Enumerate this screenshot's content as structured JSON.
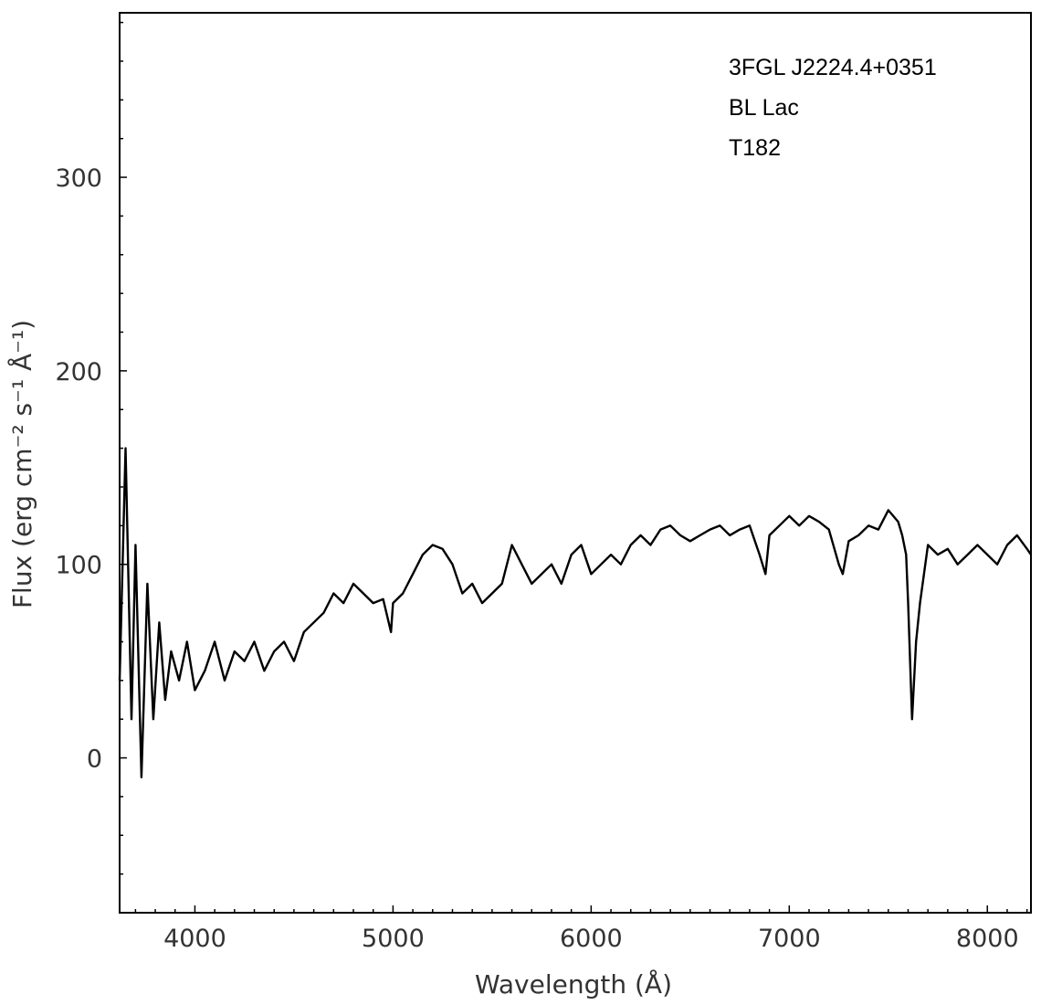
{
  "chart_data": {
    "type": "line",
    "title": "",
    "xlabel": "Wavelength (Å)",
    "ylabel": "Flux (erg cm⁻² s⁻¹ Å⁻¹)",
    "xlim": [
      3620,
      8220
    ],
    "ylim": [
      -80,
      385
    ],
    "x_ticks": [
      4000,
      5000,
      6000,
      7000,
      8000
    ],
    "y_ticks": [
      0,
      100,
      200,
      300
    ],
    "grid": false,
    "legend": "none",
    "line_color": "#000000",
    "annotations": [
      "3FGL J2224.4+0351",
      "BL Lac",
      "T182"
    ],
    "series": [
      {
        "x": [
          3620,
          3650,
          3680,
          3700,
          3730,
          3760,
          3790,
          3820,
          3850,
          3880,
          3920,
          3960,
          4000,
          4050,
          4100,
          4150,
          4200,
          4250,
          4300,
          4350,
          4400,
          4450,
          4500,
          4550,
          4600,
          4650,
          4700,
          4750,
          4800,
          4850,
          4900,
          4950,
          4990,
          5000,
          5050,
          5100,
          5150,
          5200,
          5250,
          5300,
          5350,
          5400,
          5450,
          5500,
          5550,
          5600,
          5650,
          5700,
          5750,
          5800,
          5850,
          5900,
          5950,
          6000,
          6050,
          6100,
          6150,
          6200,
          6250,
          6300,
          6350,
          6400,
          6450,
          6500,
          6550,
          6600,
          6650,
          6700,
          6750,
          6800,
          6850,
          6880,
          6900,
          6950,
          7000,
          7050,
          7100,
          7150,
          7200,
          7250,
          7270,
          7300,
          7350,
          7400,
          7450,
          7500,
          7550,
          7570,
          7590,
          7600,
          7620,
          7640,
          7660,
          7700,
          7750,
          7800,
          7850,
          7900,
          7950,
          8000,
          8050,
          8100,
          8150,
          8200,
          8220
        ],
        "y": [
          40,
          160,
          20,
          110,
          -10,
          90,
          20,
          70,
          30,
          55,
          40,
          60,
          35,
          45,
          60,
          40,
          55,
          50,
          60,
          45,
          55,
          60,
          50,
          65,
          70,
          75,
          85,
          80,
          90,
          85,
          80,
          82,
          65,
          80,
          85,
          95,
          105,
          110,
          108,
          100,
          85,
          90,
          80,
          85,
          90,
          110,
          100,
          90,
          95,
          100,
          90,
          105,
          110,
          95,
          100,
          105,
          100,
          110,
          115,
          110,
          118,
          120,
          115,
          112,
          115,
          118,
          120,
          115,
          118,
          120,
          105,
          95,
          115,
          120,
          125,
          120,
          125,
          122,
          118,
          100,
          95,
          112,
          115,
          120,
          118,
          128,
          122,
          115,
          105,
          80,
          20,
          60,
          80,
          110,
          105,
          108,
          100,
          105,
          110,
          105,
          100,
          110,
          115,
          108,
          105
        ]
      }
    ]
  }
}
